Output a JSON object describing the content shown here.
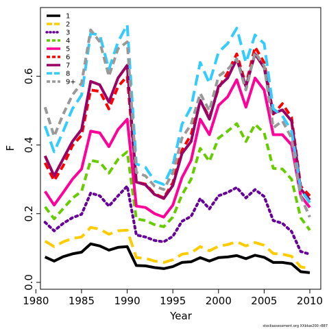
{
  "chart_data": {
    "type": "line",
    "xlabel": "Year",
    "ylabel": "F",
    "xlim": [
      1980.5,
      2011.2
    ],
    "ylim": [
      -0.02,
      0.8
    ],
    "xticks": [
      1980,
      1985,
      1990,
      1995,
      2000,
      2005,
      2010
    ],
    "yticks": [
      0.0,
      0.2,
      0.4,
      0.6
    ],
    "ytick_labels": [
      "0.0",
      "0.2",
      "0.4",
      "0.6"
    ],
    "grid": false,
    "legend_position": "top-left",
    "credit": "stockassessment.org XXblue200 r887",
    "x": [
      1981,
      1982,
      1983,
      1984,
      1985,
      1986,
      1987,
      1988,
      1989,
      1990,
      1991,
      1992,
      1993,
      1994,
      1995,
      1996,
      1997,
      1998,
      1999,
      2000,
      2001,
      2002,
      2003,
      2004,
      2005,
      2006,
      2007,
      2008,
      2009,
      2010
    ],
    "series": [
      {
        "name": "1",
        "color": "#000000",
        "dash": "solid",
        "values": [
          0.074,
          0.062,
          0.075,
          0.083,
          0.088,
          0.112,
          0.106,
          0.094,
          0.102,
          0.104,
          0.049,
          0.048,
          0.043,
          0.04,
          0.046,
          0.058,
          0.06,
          0.072,
          0.062,
          0.072,
          0.074,
          0.078,
          0.069,
          0.079,
          0.073,
          0.058,
          0.058,
          0.054,
          0.031,
          0.028
        ]
      },
      {
        "name": "2",
        "color": "#ffcc00",
        "dash": "long",
        "values": [
          0.12,
          0.104,
          0.118,
          0.128,
          0.132,
          0.16,
          0.155,
          0.14,
          0.15,
          0.152,
          0.072,
          0.07,
          0.062,
          0.058,
          0.066,
          0.082,
          0.086,
          0.104,
          0.092,
          0.105,
          0.11,
          0.118,
          0.106,
          0.116,
          0.108,
          0.084,
          0.082,
          0.076,
          0.045,
          0.04
        ]
      },
      {
        "name": "3",
        "color": "#660099",
        "dash": "dot",
        "values": [
          0.175,
          0.15,
          0.172,
          0.188,
          0.198,
          0.26,
          0.252,
          0.222,
          0.252,
          0.28,
          0.138,
          0.132,
          0.122,
          0.118,
          0.134,
          0.178,
          0.192,
          0.244,
          0.214,
          0.252,
          0.262,
          0.276,
          0.246,
          0.27,
          0.25,
          0.18,
          0.172,
          0.148,
          0.09,
          0.082
        ]
      },
      {
        "name": "4",
        "color": "#66cc00",
        "dash": "medium",
        "values": [
          0.22,
          0.185,
          0.215,
          0.245,
          0.265,
          0.355,
          0.35,
          0.318,
          0.358,
          0.38,
          0.185,
          0.18,
          0.168,
          0.162,
          0.19,
          0.255,
          0.3,
          0.39,
          0.352,
          0.42,
          0.44,
          0.462,
          0.41,
          0.46,
          0.435,
          0.332,
          0.33,
          0.3,
          0.188,
          0.152
        ]
      },
      {
        "name": "5",
        "color": "#ff0099",
        "dash": "solid",
        "values": [
          0.265,
          0.225,
          0.262,
          0.3,
          0.33,
          0.44,
          0.435,
          0.395,
          0.445,
          0.475,
          0.222,
          0.218,
          0.2,
          0.19,
          0.225,
          0.305,
          0.355,
          0.475,
          0.43,
          0.515,
          0.54,
          0.59,
          0.51,
          0.595,
          0.56,
          0.43,
          0.43,
          0.4,
          0.252,
          0.218
        ]
      },
      {
        "name": "6",
        "color": "#ff0000",
        "dash": "medium",
        "values": [
          0.348,
          0.296,
          0.34,
          0.398,
          0.428,
          0.56,
          0.556,
          0.505,
          0.57,
          0.6,
          0.292,
          0.286,
          0.258,
          0.246,
          0.29,
          0.385,
          0.43,
          0.53,
          0.48,
          0.565,
          0.61,
          0.665,
          0.575,
          0.685,
          0.64,
          0.49,
          0.52,
          0.48,
          0.28,
          0.252
        ]
      },
      {
        "name": "7",
        "color": "#990066",
        "dash": "solid",
        "values": [
          0.368,
          0.31,
          0.36,
          0.41,
          0.445,
          0.585,
          0.575,
          0.525,
          0.595,
          0.632,
          0.292,
          0.284,
          0.256,
          0.244,
          0.282,
          0.375,
          0.41,
          0.53,
          0.475,
          0.57,
          0.595,
          0.65,
          0.57,
          0.665,
          0.625,
          0.492,
          0.502,
          0.47,
          0.272,
          0.24
        ]
      },
      {
        "name": "8",
        "color": "#33ccff",
        "dash": "long",
        "values": [
          0.455,
          0.38,
          0.44,
          0.505,
          0.545,
          0.725,
          0.72,
          0.62,
          0.7,
          0.75,
          0.345,
          0.335,
          0.295,
          0.285,
          0.34,
          0.46,
          0.51,
          0.64,
          0.58,
          0.67,
          0.695,
          0.74,
          0.64,
          0.72,
          0.695,
          0.505,
          0.485,
          0.44,
          0.27,
          0.232
        ]
      },
      {
        "name": "9+",
        "color": "#999999",
        "dash": "medium",
        "values": [
          0.51,
          0.425,
          0.49,
          0.545,
          0.58,
          0.735,
          0.7,
          0.6,
          0.68,
          0.7,
          0.32,
          0.31,
          0.28,
          0.27,
          0.32,
          0.42,
          0.46,
          0.55,
          0.5,
          0.6,
          0.62,
          0.65,
          0.56,
          0.67,
          0.63,
          0.45,
          0.47,
          0.42,
          0.25,
          0.19
        ]
      }
    ]
  }
}
